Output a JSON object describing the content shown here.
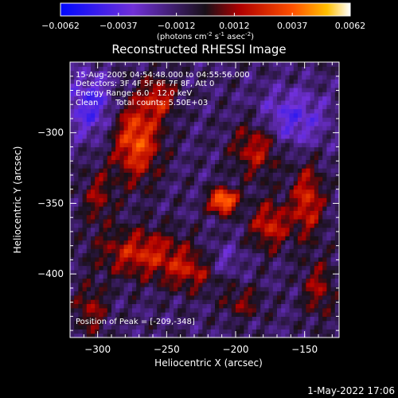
{
  "chart_data": {
    "type": "heatmap",
    "title": "Reconstructed RHESSI Image",
    "xlabel": "Heliocentric X (arcsec)",
    "ylabel": "Heliocentric Y (arcsec)",
    "xlim": [
      -320,
      -125
    ],
    "ylim": [
      -445,
      -250
    ],
    "x_ticks": [
      -300,
      -250,
      -200,
      -150
    ],
    "y_ticks": [
      -300,
      -350,
      -400
    ],
    "x_tick_labels": [
      "−300",
      "−250",
      "−200",
      "−150"
    ],
    "y_tick_labels": [
      "−300",
      "−350",
      "−400"
    ],
    "colorbar": {
      "range": [
        -0.0062,
        0.0062
      ],
      "tick_labels": [
        "−0.0062",
        "−0.0037",
        "−0.0012",
        "0.0012",
        "0.0037",
        "0.0062"
      ],
      "units_text": "(photons cm",
      "units_sup1": "-2",
      "units_mid": " s",
      "units_sup2": "-1",
      "units_end": " asec",
      "units_sup3": "-2",
      "units_close": ")"
    },
    "peak": {
      "x": -209,
      "y": -348,
      "value": 0.0062
    },
    "sources": [
      {
        "x": -209,
        "y": -348,
        "amp": 0.0062,
        "sx": 7,
        "sy": 6
      },
      {
        "x": -272,
        "y": -305,
        "amp": 0.0046,
        "sx": 12,
        "sy": 20
      },
      {
        "x": -255,
        "y": -275,
        "amp": 0.003,
        "sx": 8,
        "sy": 10
      },
      {
        "x": -268,
        "y": -385,
        "amp": 0.0034,
        "sx": 22,
        "sy": 12
      },
      {
        "x": -232,
        "y": -398,
        "amp": 0.0026,
        "sx": 14,
        "sy": 10
      },
      {
        "x": -185,
        "y": -310,
        "amp": 0.0032,
        "sx": 12,
        "sy": 14
      },
      {
        "x": -175,
        "y": -365,
        "amp": 0.0034,
        "sx": 10,
        "sy": 12
      },
      {
        "x": -148,
        "y": -348,
        "amp": 0.0036,
        "sx": 8,
        "sy": 18
      },
      {
        "x": -140,
        "y": -410,
        "amp": 0.0024,
        "sx": 8,
        "sy": 14
      },
      {
        "x": -300,
        "y": -345,
        "amp": 0.0022,
        "sx": 8,
        "sy": 14
      },
      {
        "x": -305,
        "y": -425,
        "amp": 0.0024,
        "sx": 8,
        "sy": 12
      },
      {
        "x": -195,
        "y": -420,
        "amp": 0.002,
        "sx": 10,
        "sy": 8
      },
      {
        "x": -160,
        "y": -290,
        "amp": -0.0026,
        "sx": 18,
        "sy": 14
      },
      {
        "x": -305,
        "y": -280,
        "amp": -0.003,
        "sx": 12,
        "sy": 16
      },
      {
        "x": -210,
        "y": -390,
        "amp": -0.0016,
        "sx": 10,
        "sy": 8
      }
    ],
    "grid": false,
    "legend": "none"
  },
  "annotations": {
    "time_range": "15-Aug-2005 04:54:48.000 to 04:55:56.000",
    "detectors": "Detectors: 3F 4F 5F 6F 7F 8F, Att 0",
    "energy": "Energy Range: 6.0 - 12.0 keV",
    "clean": "Clean",
    "counts": "Total counts: 5.50E+03",
    "peak_label": "Position of Peak = [-209,-348]"
  },
  "timestamp": "1-May-2022 17:06"
}
